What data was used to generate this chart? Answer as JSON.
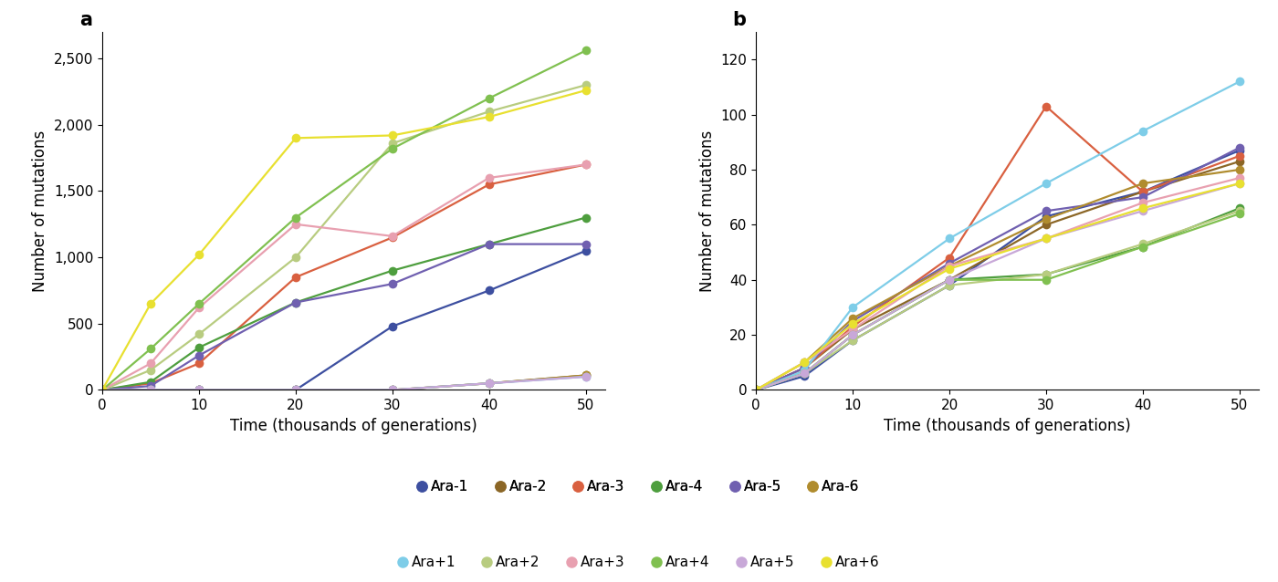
{
  "time_points": [
    0,
    5,
    10,
    20,
    30,
    40,
    50
  ],
  "populations": {
    "Ara-1": {
      "color": "#3d4fa0",
      "values_a": [
        0,
        0,
        0,
        0,
        480,
        750,
        1050
      ],
      "values_b": [
        0,
        5,
        18,
        38,
        63,
        72,
        87
      ]
    },
    "Ara-2": {
      "color": "#8b6626",
      "values_a": [
        0,
        0,
        0,
        0,
        0,
        50,
        110
      ],
      "values_b": [
        0,
        8,
        22,
        40,
        60,
        72,
        83
      ]
    },
    "Ara-3": {
      "color": "#d96040",
      "values_a": [
        0,
        50,
        200,
        850,
        1150,
        1550,
        1700
      ],
      "values_b": [
        0,
        8,
        23,
        48,
        103,
        72,
        85
      ]
    },
    "Ara-4": {
      "color": "#4e9e3e",
      "values_a": [
        0,
        60,
        320,
        660,
        900,
        1100,
        1300
      ],
      "values_b": [
        0,
        6,
        20,
        40,
        42,
        52,
        66
      ]
    },
    "Ara-5": {
      "color": "#7060b0",
      "values_a": [
        0,
        30,
        260,
        660,
        800,
        1100,
        1100
      ],
      "values_b": [
        0,
        8,
        25,
        46,
        65,
        70,
        88
      ]
    },
    "Ara-6": {
      "color": "#b08c2e",
      "values_a": [
        0,
        0,
        0,
        0,
        0,
        50,
        110
      ],
      "values_b": [
        0,
        10,
        26,
        45,
        62,
        75,
        80
      ]
    },
    "Ara+1": {
      "color": "#7ecde8",
      "values_a": [
        0,
        0,
        0,
        0,
        0,
        50,
        100
      ],
      "values_b": [
        0,
        7,
        30,
        55,
        75,
        94,
        112
      ]
    },
    "Ara+2": {
      "color": "#b8cc80",
      "values_a": [
        0,
        150,
        420,
        1000,
        1860,
        2100,
        2300
      ],
      "values_b": [
        0,
        6,
        18,
        38,
        42,
        53,
        65
      ]
    },
    "Ara+3": {
      "color": "#e8a0b0",
      "values_a": [
        0,
        200,
        620,
        1250,
        1160,
        1600,
        1700
      ],
      "values_b": [
        0,
        10,
        22,
        45,
        55,
        68,
        77
      ]
    },
    "Ara+4": {
      "color": "#80c050",
      "values_a": [
        0,
        310,
        650,
        1300,
        1820,
        2200,
        2560
      ],
      "values_b": [
        0,
        6,
        20,
        40,
        40,
        52,
        64
      ]
    },
    "Ara+5": {
      "color": "#c8a8d8",
      "values_a": [
        0,
        0,
        0,
        0,
        0,
        50,
        100
      ],
      "values_b": [
        0,
        6,
        20,
        40,
        55,
        65,
        75
      ]
    },
    "Ara+6": {
      "color": "#e8e030",
      "values_a": [
        0,
        650,
        1020,
        1900,
        1920,
        2060,
        2260
      ],
      "values_b": [
        0,
        10,
        24,
        44,
        55,
        66,
        75
      ]
    }
  },
  "legend_row1": [
    "Ara-1",
    "Ara-2",
    "Ara-3",
    "Ara-4",
    "Ara-5",
    "Ara-6"
  ],
  "legend_row2": [
    "Ara+1",
    "Ara+2",
    "Ara+3",
    "Ara+4",
    "Ara+5",
    "Ara+6"
  ],
  "xlabel": "Time (thousands of generations)",
  "ylabel": "Number of mutations",
  "ylim_a": [
    0,
    2700
  ],
  "ylim_b": [
    0,
    130
  ],
  "yticks_a": [
    0,
    500,
    1000,
    1500,
    2000,
    2500
  ],
  "yticks_b": [
    0,
    20,
    40,
    60,
    80,
    100,
    120
  ],
  "xticks": [
    0,
    10,
    20,
    30,
    40,
    50
  ],
  "xlim_a": [
    0,
    52
  ],
  "xlim_b": [
    0,
    52
  ],
  "background_color": "#ffffff",
  "fontsize_label": 12,
  "fontsize_tick": 11,
  "fontsize_panel": 15,
  "legend_fontsize": 11,
  "marker_size": 7,
  "line_width": 1.6
}
